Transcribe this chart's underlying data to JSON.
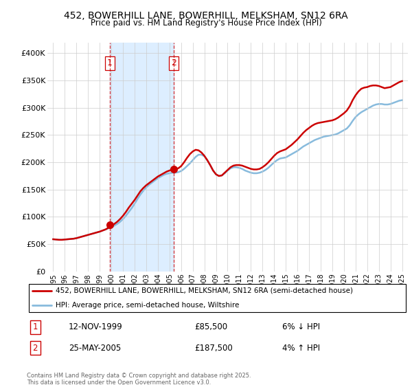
{
  "title": "452, BOWERHILL LANE, BOWERHILL, MELKSHAM, SN12 6RA",
  "subtitle": "Price paid vs. HM Land Registry's House Price Index (HPI)",
  "legend_line1": "452, BOWERHILL LANE, BOWERHILL, MELKSHAM, SN12 6RA (semi-detached house)",
  "legend_line2": "HPI: Average price, semi-detached house, Wiltshire",
  "label1_date": "12-NOV-1999",
  "label1_price": "£85,500",
  "label1_hpi": "6% ↓ HPI",
  "label2_date": "25-MAY-2005",
  "label2_price": "£187,500",
  "label2_hpi": "4% ↑ HPI",
  "footnote": "Contains HM Land Registry data © Crown copyright and database right 2025.\nThis data is licensed under the Open Government Licence v3.0.",
  "red_color": "#cc0000",
  "blue_color": "#88bbdd",
  "shade_color": "#ddeeff",
  "vline1_x": 1999.87,
  "vline2_x": 2005.39,
  "marker1_x": 1999.87,
  "marker1_y": 85500,
  "marker2_x": 2005.39,
  "marker2_y": 187500,
  "ylim": [
    0,
    420000
  ],
  "xlim": [
    1994.5,
    2025.5
  ],
  "yticks": [
    0,
    50000,
    100000,
    150000,
    200000,
    250000,
    300000,
    350000,
    400000
  ],
  "ytick_labels": [
    "£0",
    "£50K",
    "£100K",
    "£150K",
    "£200K",
    "£250K",
    "£300K",
    "£350K",
    "£400K"
  ],
  "xtick_years": [
    1995,
    1996,
    1997,
    1998,
    1999,
    2000,
    2001,
    2002,
    2003,
    2004,
    2005,
    2006,
    2007,
    2008,
    2009,
    2010,
    2011,
    2012,
    2013,
    2014,
    2015,
    2016,
    2017,
    2018,
    2019,
    2020,
    2021,
    2022,
    2023,
    2024,
    2025
  ],
  "hpi_data": [
    [
      1995.0,
      59000
    ],
    [
      1995.25,
      58500
    ],
    [
      1995.5,
      58000
    ],
    [
      1995.75,
      58000
    ],
    [
      1996.0,
      58500
    ],
    [
      1996.25,
      59000
    ],
    [
      1996.5,
      59500
    ],
    [
      1996.75,
      60000
    ],
    [
      1997.0,
      61000
    ],
    [
      1997.25,
      62500
    ],
    [
      1997.5,
      64000
    ],
    [
      1997.75,
      65500
    ],
    [
      1998.0,
      67000
    ],
    [
      1998.25,
      68500
    ],
    [
      1998.5,
      70000
    ],
    [
      1998.75,
      71500
    ],
    [
      1999.0,
      73000
    ],
    [
      1999.25,
      75000
    ],
    [
      1999.5,
      77000
    ],
    [
      1999.75,
      79000
    ],
    [
      2000.0,
      81000
    ],
    [
      2000.25,
      84000
    ],
    [
      2000.5,
      87000
    ],
    [
      2000.75,
      91000
    ],
    [
      2001.0,
      96000
    ],
    [
      2001.25,
      102000
    ],
    [
      2001.5,
      109000
    ],
    [
      2001.75,
      116000
    ],
    [
      2002.0,
      124000
    ],
    [
      2002.25,
      133000
    ],
    [
      2002.5,
      141000
    ],
    [
      2002.75,
      148000
    ],
    [
      2003.0,
      154000
    ],
    [
      2003.25,
      159000
    ],
    [
      2003.5,
      163000
    ],
    [
      2003.75,
      167000
    ],
    [
      2004.0,
      171000
    ],
    [
      2004.25,
      174000
    ],
    [
      2004.5,
      177000
    ],
    [
      2004.75,
      179000
    ],
    [
      2005.0,
      180000
    ],
    [
      2005.25,
      181000
    ],
    [
      2005.5,
      181000
    ],
    [
      2005.75,
      182000
    ],
    [
      2006.0,
      184000
    ],
    [
      2006.25,
      188000
    ],
    [
      2006.5,
      193000
    ],
    [
      2006.75,
      198000
    ],
    [
      2007.0,
      204000
    ],
    [
      2007.25,
      210000
    ],
    [
      2007.5,
      214000
    ],
    [
      2007.75,
      214000
    ],
    [
      2008.0,
      211000
    ],
    [
      2008.25,
      204000
    ],
    [
      2008.5,
      195000
    ],
    [
      2008.75,
      185000
    ],
    [
      2009.0,
      178000
    ],
    [
      2009.25,
      175000
    ],
    [
      2009.5,
      176000
    ],
    [
      2009.75,
      180000
    ],
    [
      2010.0,
      185000
    ],
    [
      2010.25,
      189000
    ],
    [
      2010.5,
      191000
    ],
    [
      2010.75,
      191000
    ],
    [
      2011.0,
      190000
    ],
    [
      2011.25,
      188000
    ],
    [
      2011.5,
      185000
    ],
    [
      2011.75,
      183000
    ],
    [
      2012.0,
      181000
    ],
    [
      2012.25,
      180000
    ],
    [
      2012.5,
      180000
    ],
    [
      2012.75,
      181000
    ],
    [
      2013.0,
      183000
    ],
    [
      2013.25,
      186000
    ],
    [
      2013.5,
      190000
    ],
    [
      2013.75,
      195000
    ],
    [
      2014.0,
      200000
    ],
    [
      2014.25,
      204000
    ],
    [
      2014.5,
      207000
    ],
    [
      2014.75,
      208000
    ],
    [
      2015.0,
      209000
    ],
    [
      2015.25,
      212000
    ],
    [
      2015.5,
      215000
    ],
    [
      2015.75,
      218000
    ],
    [
      2016.0,
      221000
    ],
    [
      2016.25,
      225000
    ],
    [
      2016.5,
      229000
    ],
    [
      2016.75,
      232000
    ],
    [
      2017.0,
      235000
    ],
    [
      2017.25,
      238000
    ],
    [
      2017.5,
      241000
    ],
    [
      2017.75,
      243000
    ],
    [
      2018.0,
      245000
    ],
    [
      2018.25,
      247000
    ],
    [
      2018.5,
      248000
    ],
    [
      2018.75,
      249000
    ],
    [
      2019.0,
      250000
    ],
    [
      2019.25,
      251000
    ],
    [
      2019.5,
      253000
    ],
    [
      2019.75,
      256000
    ],
    [
      2020.0,
      259000
    ],
    [
      2020.25,
      262000
    ],
    [
      2020.5,
      268000
    ],
    [
      2020.75,
      276000
    ],
    [
      2021.0,
      283000
    ],
    [
      2021.25,
      288000
    ],
    [
      2021.5,
      292000
    ],
    [
      2021.75,
      295000
    ],
    [
      2022.0,
      298000
    ],
    [
      2022.25,
      301000
    ],
    [
      2022.5,
      304000
    ],
    [
      2022.75,
      306000
    ],
    [
      2023.0,
      307000
    ],
    [
      2023.25,
      307000
    ],
    [
      2023.5,
      306000
    ],
    [
      2023.75,
      306000
    ],
    [
      2024.0,
      307000
    ],
    [
      2024.25,
      309000
    ],
    [
      2024.5,
      311000
    ],
    [
      2024.75,
      313000
    ],
    [
      2025.0,
      314000
    ]
  ],
  "price_data": [
    [
      1995.0,
      59000
    ],
    [
      1995.25,
      58500
    ],
    [
      1995.5,
      58000
    ],
    [
      1995.75,
      58000
    ],
    [
      1996.0,
      58500
    ],
    [
      1996.25,
      59000
    ],
    [
      1996.5,
      59500
    ],
    [
      1996.75,
      60000
    ],
    [
      1997.0,
      61000
    ],
    [
      1997.25,
      62500
    ],
    [
      1997.5,
      64000
    ],
    [
      1997.75,
      65500
    ],
    [
      1998.0,
      67000
    ],
    [
      1998.25,
      68500
    ],
    [
      1998.5,
      70000
    ],
    [
      1998.75,
      71500
    ],
    [
      1999.0,
      73000
    ],
    [
      1999.25,
      75000
    ],
    [
      1999.5,
      77000
    ],
    [
      1999.75,
      80000
    ],
    [
      2000.0,
      83000
    ],
    [
      2000.25,
      87000
    ],
    [
      2000.5,
      91000
    ],
    [
      2000.75,
      96000
    ],
    [
      2001.0,
      102000
    ],
    [
      2001.25,
      109000
    ],
    [
      2001.5,
      117000
    ],
    [
      2001.75,
      124000
    ],
    [
      2002.0,
      131000
    ],
    [
      2002.25,
      139000
    ],
    [
      2002.5,
      147000
    ],
    [
      2002.75,
      153000
    ],
    [
      2003.0,
      158000
    ],
    [
      2003.25,
      162000
    ],
    [
      2003.5,
      166000
    ],
    [
      2003.75,
      170000
    ],
    [
      2004.0,
      174000
    ],
    [
      2004.25,
      177000
    ],
    [
      2004.5,
      180000
    ],
    [
      2004.75,
      183000
    ],
    [
      2005.0,
      185000
    ],
    [
      2005.25,
      187000
    ],
    [
      2005.5,
      188000
    ],
    [
      2005.75,
      189000
    ],
    [
      2006.0,
      193000
    ],
    [
      2006.25,
      200000
    ],
    [
      2006.5,
      208000
    ],
    [
      2006.75,
      215000
    ],
    [
      2007.0,
      220000
    ],
    [
      2007.25,
      223000
    ],
    [
      2007.5,
      222000
    ],
    [
      2007.75,
      218000
    ],
    [
      2008.0,
      212000
    ],
    [
      2008.25,
      204000
    ],
    [
      2008.5,
      195000
    ],
    [
      2008.75,
      185000
    ],
    [
      2009.0,
      178000
    ],
    [
      2009.25,
      175000
    ],
    [
      2009.5,
      176000
    ],
    [
      2009.75,
      181000
    ],
    [
      2010.0,
      186000
    ],
    [
      2010.25,
      191000
    ],
    [
      2010.5,
      194000
    ],
    [
      2010.75,
      195000
    ],
    [
      2011.0,
      195000
    ],
    [
      2011.25,
      194000
    ],
    [
      2011.5,
      192000
    ],
    [
      2011.75,
      190000
    ],
    [
      2012.0,
      188000
    ],
    [
      2012.25,
      187000
    ],
    [
      2012.5,
      187000
    ],
    [
      2012.75,
      188000
    ],
    [
      2013.0,
      191000
    ],
    [
      2013.25,
      195000
    ],
    [
      2013.5,
      200000
    ],
    [
      2013.75,
      206000
    ],
    [
      2014.0,
      212000
    ],
    [
      2014.25,
      217000
    ],
    [
      2014.5,
      220000
    ],
    [
      2014.75,
      222000
    ],
    [
      2015.0,
      224000
    ],
    [
      2015.25,
      228000
    ],
    [
      2015.5,
      232000
    ],
    [
      2015.75,
      237000
    ],
    [
      2016.0,
      242000
    ],
    [
      2016.25,
      248000
    ],
    [
      2016.5,
      254000
    ],
    [
      2016.75,
      259000
    ],
    [
      2017.0,
      263000
    ],
    [
      2017.25,
      267000
    ],
    [
      2017.5,
      270000
    ],
    [
      2017.75,
      272000
    ],
    [
      2018.0,
      273000
    ],
    [
      2018.25,
      274000
    ],
    [
      2018.5,
      275000
    ],
    [
      2018.75,
      276000
    ],
    [
      2019.0,
      277000
    ],
    [
      2019.25,
      279000
    ],
    [
      2019.5,
      282000
    ],
    [
      2019.75,
      286000
    ],
    [
      2020.0,
      290000
    ],
    [
      2020.25,
      295000
    ],
    [
      2020.5,
      303000
    ],
    [
      2020.75,
      314000
    ],
    [
      2021.0,
      323000
    ],
    [
      2021.25,
      330000
    ],
    [
      2021.5,
      335000
    ],
    [
      2021.75,
      337000
    ],
    [
      2022.0,
      338000
    ],
    [
      2022.25,
      340000
    ],
    [
      2022.5,
      341000
    ],
    [
      2022.75,
      341000
    ],
    [
      2023.0,
      340000
    ],
    [
      2023.25,
      338000
    ],
    [
      2023.5,
      336000
    ],
    [
      2023.75,
      337000
    ],
    [
      2024.0,
      338000
    ],
    [
      2024.25,
      341000
    ],
    [
      2024.5,
      344000
    ],
    [
      2024.75,
      347000
    ],
    [
      2025.0,
      349000
    ]
  ]
}
